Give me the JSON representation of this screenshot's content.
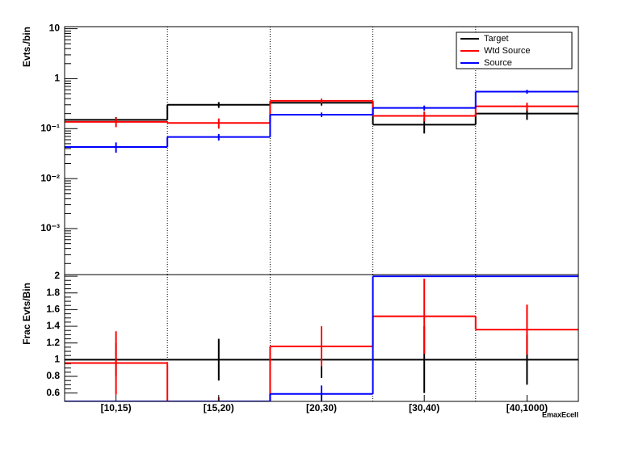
{
  "chart_data": [
    {
      "type": "step",
      "ylabel": "Evts./bin",
      "log": true,
      "ylim": [
        0.00012,
        11
      ],
      "yticks": [
        {
          "value": 0.001,
          "label": "10⁻³"
        },
        {
          "value": 0.01,
          "label": "10⁻²"
        },
        {
          "value": 0.1,
          "label": "10⁻¹"
        },
        1,
        10
      ],
      "legend": "upper right",
      "xgrid": true,
      "series": [
        {
          "name": "Target",
          "color": "#000000",
          "values": [
            0.15,
            0.3,
            0.33,
            0.12,
            0.2
          ],
          "errors": [
            0.02,
            0.04,
            0.04,
            0.04,
            0.05
          ]
        },
        {
          "name": "Wtd Source",
          "color": "#ff0000",
          "values": [
            0.137,
            0.13,
            0.36,
            0.18,
            0.28
          ],
          "errors": [
            0.03,
            0.03,
            0.04,
            0.04,
            0.05
          ]
        },
        {
          "name": "Source",
          "color": "#0000ff",
          "values": [
            0.043,
            0.068,
            0.19,
            0.26,
            0.55
          ],
          "errors": [
            0.01,
            0.01,
            0.02,
            0.03,
            0.05
          ]
        }
      ]
    },
    {
      "type": "step",
      "ylabel": "Frac Evts/Bin",
      "xlabel": "EmaxEcell",
      "log": false,
      "ylim": [
        0.5,
        2.02
      ],
      "yticks": [
        0.6,
        0.8,
        1,
        1.2,
        1.4,
        1.6,
        1.8,
        2
      ],
      "xgrid": true,
      "categories": [
        "[10,15)",
        "[15,20)",
        "[20,30)",
        "[30,40)",
        "[40,1000)"
      ],
      "series": [
        {
          "color": "#000000",
          "values": [
            1,
            1,
            1,
            1,
            1
          ],
          "errors": [
            0.2,
            0.25,
            0.22,
            0.4,
            0.3
          ]
        },
        {
          "color": "#ff0000",
          "values": [
            0.96,
            0.45,
            1.16,
            1.52,
            1.36
          ],
          "errors": [
            0.38,
            0.1,
            0.24,
            0.45,
            0.3
          ]
        },
        {
          "color": "#0000ff",
          "values": [
            0.5,
            0.5,
            0.59,
            2.0,
            2.0
          ],
          "errors": [
            0,
            0,
            0.1,
            0,
            0
          ]
        }
      ]
    }
  ]
}
